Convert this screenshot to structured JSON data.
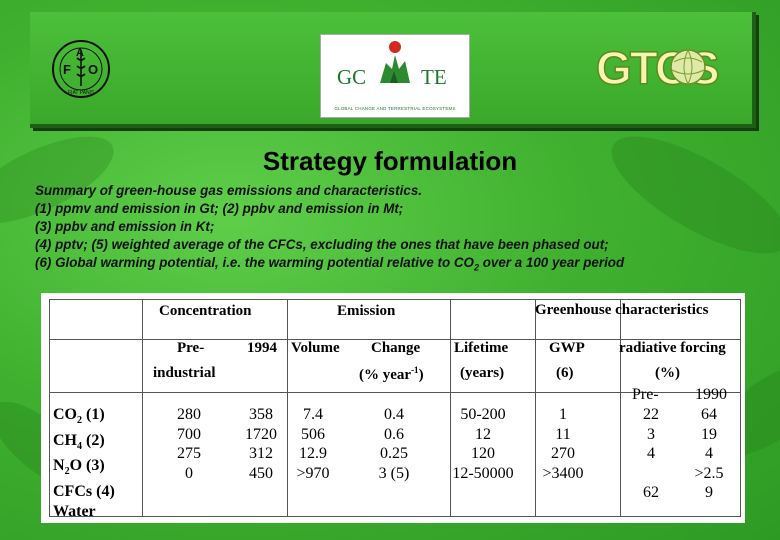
{
  "banner": {
    "fao_letters": [
      "F",
      "A",
      "O"
    ],
    "fao_motto": "FIAT PANIS",
    "gcte_left": "GC",
    "gcte_right": "TE",
    "gcte_subtitle": "GLOBAL CHANGE AND TERRESTRIAL ECOSYSTEMS",
    "gtos": "GTOS"
  },
  "title": "Strategy formulation",
  "summary_lines": [
    "Summary of green-house gas emissions and characteristics.",
    "(1) ppmv and emission in Gt; (2) ppbv and emission in Mt;",
    "(3) ppbv and emission in Kt;",
    "(4) pptv; (5) weighted average of the CFCs, excluding the ones that have been phased out;",
    "(6) Global warming potential, i.e. the warming potential relative to CO"
  ],
  "summary_sub": "2",
  "summary_tail": " over a 100 year period",
  "table": {
    "group_headers": {
      "concentration": "Concentration",
      "emission": "Emission",
      "greenhouse": "Greenhouse characteristics"
    },
    "sub_headers": {
      "pre": "Pre-",
      "industrial": "industrial",
      "y1994": "1994",
      "volume": "Volume",
      "change": "Change",
      "change_unit": "(% year",
      "change_exp": "-1",
      "change_close": ")",
      "lifetime": "Lifetime",
      "lifetime_unit": "(years)",
      "gwp": "GWP",
      "gwp_unit": "(6)",
      "rf": "radiative forcing",
      "rf_unit": "(%)"
    },
    "rf_sub": {
      "pre": "Pre-",
      "y1990": "1990"
    },
    "rows": [
      {
        "gas": "CO",
        "sub": "2",
        "note": " (1)",
        "pre": "280",
        "y1994": "358",
        "volume": "7.4",
        "change": "0.4",
        "lifetime": "50-200",
        "gwp": "1",
        "rf_pre": "22",
        "rf_1990": "64"
      },
      {
        "gas": "CH",
        "sub": "4",
        "note": " (2)",
        "pre": "700",
        "y1994": "1720",
        "volume": "506",
        "change": "0.6",
        "lifetime": "12",
        "gwp": "11",
        "rf_pre": "3",
        "rf_1990": "19"
      },
      {
        "gas": "N",
        "sub": "2",
        "note": "O (3)",
        "pre": "275",
        "y1994": "312",
        "volume": "12.9",
        "change": "0.25",
        "lifetime": "120",
        "gwp": "270",
        "rf_pre": "4",
        "rf_1990": "4"
      },
      {
        "gas": "CFCs (4)",
        "sub": "",
        "note": "",
        "pre": "0",
        "y1994": "450",
        "volume": ">970",
        "change": "3 (5)",
        "lifetime": "12-50000",
        "gwp": ">3400",
        "rf_pre": "",
        "rf_1990": ">2.5"
      },
      {
        "gas": "Water",
        "sub": "",
        "note": "",
        "pre": "",
        "y1994": "",
        "volume": "",
        "change": "",
        "lifetime": "",
        "gwp": "",
        "rf_pre": "62",
        "rf_1990": "9"
      }
    ]
  }
}
